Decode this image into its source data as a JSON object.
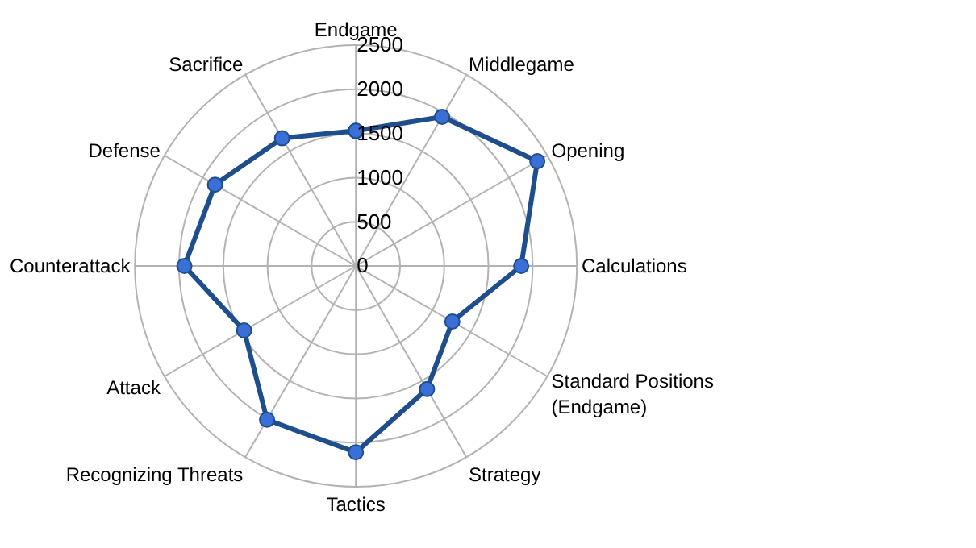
{
  "chart_data": {
    "type": "radar",
    "categories": [
      "Endgame",
      "Middlegame",
      "Opening",
      "Calculations",
      "Standard Positions\n(Endgame)",
      "Strategy",
      "Tactics",
      "Recognizing Threats",
      "Attack",
      "Counterattack",
      "Defense",
      "Sacrifice"
    ],
    "series": [
      {
        "color": "#1f4e8c",
        "values": [
          1530,
          1950,
          2370,
          1870,
          1260,
          1610,
          2110,
          2010,
          1460,
          1940,
          1840,
          1670
        ]
      }
    ],
    "ylim": [
      0,
      2500
    ],
    "yticks": [
      0,
      500,
      1000,
      1500,
      2000,
      2500
    ],
    "grid": true,
    "marker": "circle",
    "line_style": "solid"
  }
}
